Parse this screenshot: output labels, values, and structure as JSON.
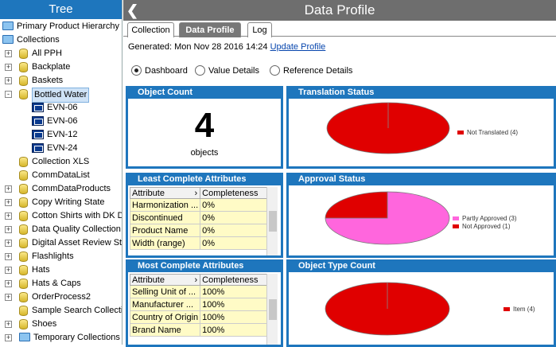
{
  "tree": {
    "title": "Tree",
    "items": [
      {
        "label": "Primary Product Hierarchy",
        "icon": "folder-icon",
        "indent": 0,
        "expander": ""
      },
      {
        "label": "Collections",
        "icon": "folder-icon",
        "indent": 0,
        "expander": ""
      },
      {
        "label": "All PPH",
        "icon": "database-icon",
        "indent": 1,
        "expander": "+"
      },
      {
        "label": "Backplate",
        "icon": "database-icon",
        "indent": 1,
        "expander": "+"
      },
      {
        "label": "Baskets",
        "icon": "database-icon",
        "indent": 1,
        "expander": "+"
      },
      {
        "label": "Bottled Water",
        "icon": "database-icon",
        "indent": 1,
        "expander": "-",
        "selected": true
      },
      {
        "label": "EVN-06",
        "icon": "evn-icon",
        "indent": 2,
        "expander": ""
      },
      {
        "label": "EVN-06",
        "icon": "evn-icon",
        "indent": 2,
        "expander": ""
      },
      {
        "label": "EVN-12",
        "icon": "evn-icon",
        "indent": 2,
        "expander": ""
      },
      {
        "label": "EVN-24",
        "icon": "evn-icon",
        "indent": 2,
        "expander": ""
      },
      {
        "label": "Collection XLS",
        "icon": "database-icon",
        "indent": 1,
        "expander": ""
      },
      {
        "label": "CommDataList",
        "icon": "database-icon",
        "indent": 1,
        "expander": ""
      },
      {
        "label": "CommDataProducts",
        "icon": "database-icon",
        "indent": 1,
        "expander": "+"
      },
      {
        "label": "Copy Writing State",
        "icon": "database-icon",
        "indent": 1,
        "expander": "+"
      },
      {
        "label": "Cotton Shirts with DK D",
        "icon": "database-icon",
        "indent": 1,
        "expander": "+"
      },
      {
        "label": "Data Quality Collection",
        "icon": "database-icon",
        "indent": 1,
        "expander": "+"
      },
      {
        "label": "Digital Asset Review Sta",
        "icon": "database-icon",
        "indent": 1,
        "expander": "+"
      },
      {
        "label": "Flashlights",
        "icon": "database-icon",
        "indent": 1,
        "expander": "+"
      },
      {
        "label": "Hats",
        "icon": "database-icon",
        "indent": 1,
        "expander": "+"
      },
      {
        "label": "Hats & Caps",
        "icon": "database-icon",
        "indent": 1,
        "expander": "+"
      },
      {
        "label": "OrderProcess2",
        "icon": "database-icon",
        "indent": 1,
        "expander": "+"
      },
      {
        "label": "Sample Search Collectio",
        "icon": "database-icon",
        "indent": 1,
        "expander": ""
      },
      {
        "label": "Shoes",
        "icon": "database-icon",
        "indent": 1,
        "expander": "+"
      },
      {
        "label": "Temporary Collections",
        "icon": "folder-icon",
        "indent": 1,
        "expander": "+"
      }
    ]
  },
  "header": {
    "title": "Data Profile",
    "back_icon": "chevron-left-icon"
  },
  "tabs": [
    {
      "label": "Collection",
      "active": false
    },
    {
      "label": "Data Profile",
      "active": true
    },
    {
      "label": "Log",
      "active": false
    }
  ],
  "generated": {
    "text": "Generated: Mon Nov 28 2016 14:24",
    "link": "Update Profile"
  },
  "view_options": [
    {
      "label": "Dashboard",
      "selected": true
    },
    {
      "label": "Value Details",
      "selected": false
    },
    {
      "label": "Reference Details",
      "selected": false
    }
  ],
  "object_count": {
    "title": "Object Count",
    "value": "4",
    "unit": "objects"
  },
  "least_complete": {
    "title": "Least Complete Attributes",
    "columns": [
      "Attribute",
      "Completeness"
    ],
    "rows": [
      [
        "Harmonization ...",
        "0%"
      ],
      [
        "Discontinued",
        "0%"
      ],
      [
        "Product Name",
        "0%"
      ],
      [
        "Width (range)",
        "0%"
      ]
    ]
  },
  "most_complete": {
    "title": "Most Complete Attributes",
    "columns": [
      "Attribute",
      "Completeness"
    ],
    "rows": [
      [
        "Selling Unit of ...",
        "100%"
      ],
      [
        "Manufacturer ...",
        "100%"
      ],
      [
        "Country of Origin",
        "100%"
      ],
      [
        "Brand Name",
        "100%"
      ]
    ]
  },
  "colors": {
    "accent": "#1e76bd",
    "red": "#e00000",
    "pink": "#ff66dd",
    "cell": "#fffbc6"
  },
  "chart_data": [
    {
      "type": "pie",
      "title": "Translation Status",
      "series": [
        {
          "name": "Not Translated (4)",
          "value": 4,
          "color": "#e00000"
        }
      ],
      "legend": "right"
    },
    {
      "type": "pie",
      "title": "Approval Status",
      "series": [
        {
          "name": "Partly Approved (3)",
          "value": 3,
          "color": "#ff66dd"
        },
        {
          "name": "Not Approved (1)",
          "value": 1,
          "color": "#e00000"
        }
      ],
      "legend": "right"
    },
    {
      "type": "pie",
      "title": "Object Type Count",
      "series": [
        {
          "name": "Item (4)",
          "value": 4,
          "color": "#e00000"
        }
      ],
      "legend": "right"
    }
  ]
}
